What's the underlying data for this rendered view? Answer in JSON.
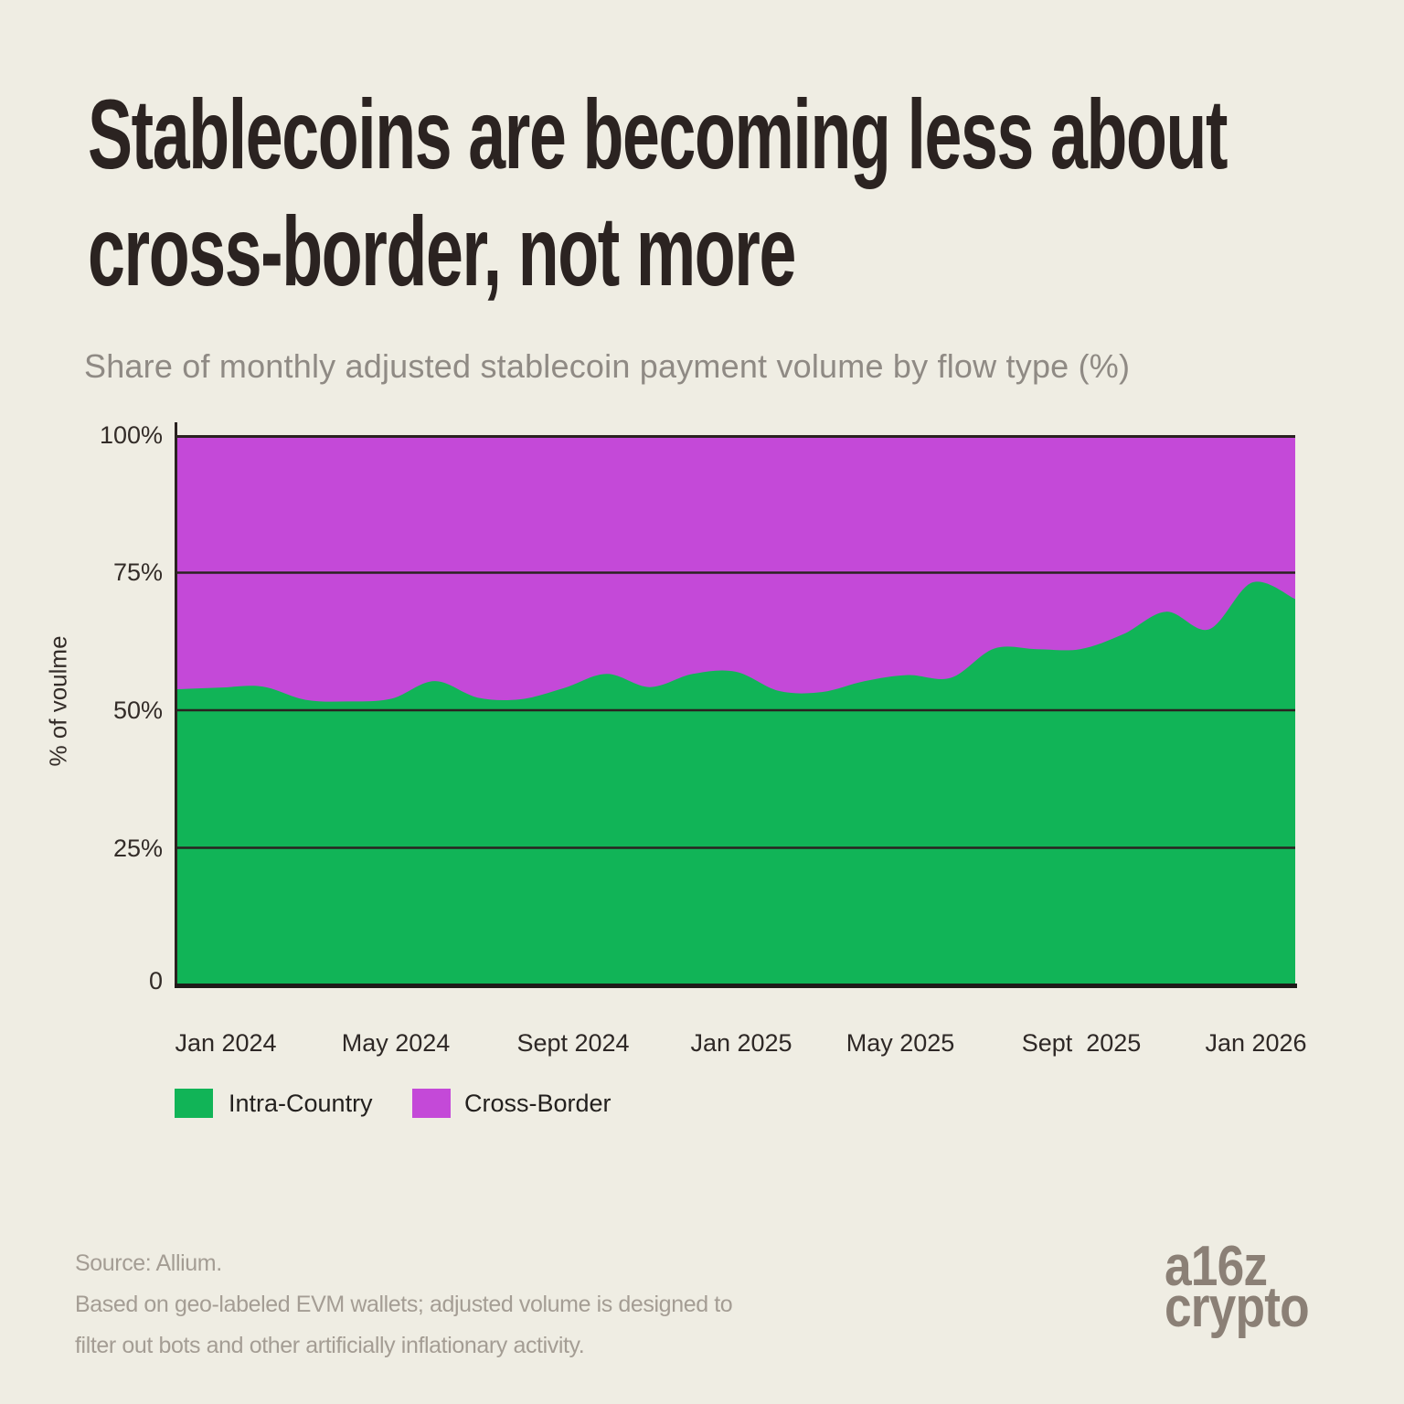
{
  "header": {
    "title_lines": [
      "Stablecoins are becoming less about",
      "cross-border, not more"
    ],
    "subtitle": "Share of monthly adjusted stablecoin payment volume by flow type (%)"
  },
  "chart_data": {
    "type": "area",
    "stacked": true,
    "normalized_to_100": true,
    "title": "Stablecoins are becoming less about cross-border, not more",
    "subtitle": "Share of monthly adjusted stablecoin payment volume by flow type (%)",
    "xlabel": "",
    "ylabel": "% of voulme",
    "ylim": [
      0,
      100
    ],
    "yticks": [
      "100%",
      "75%",
      "50%",
      "25%",
      "0"
    ],
    "ytick_values": [
      100,
      75,
      50,
      25,
      0
    ],
    "xticks": [
      "Jan 2024",
      "May 2024",
      "Sept 2024",
      "Jan 2025",
      "May 2025",
      "Sept  2025",
      "Jan 2026"
    ],
    "grid": "horizontal lines at 25, 50, 75",
    "legend_position": "bottom-left",
    "x": [
      "Dec 2023",
      "Jan 2024",
      "Feb 2024",
      "Mar 2024",
      "Apr 2024",
      "May 2024",
      "Jun 2024",
      "Jul 2024",
      "Aug 2024",
      "Sep 2024",
      "Oct 2024",
      "Nov 2024",
      "Dec 2024",
      "Jan 2025",
      "Feb 2025",
      "Mar 2025",
      "Apr 2025",
      "May 2025",
      "Jun 2025",
      "Jul 2025",
      "Aug 2025",
      "Sep 2025",
      "Oct 2025",
      "Nov 2025",
      "Dec 2025",
      "Jan 2026",
      "Feb 2026"
    ],
    "series": [
      {
        "name": "Intra-Country",
        "color": "#11B457",
        "values": [
          53.8,
          54.1,
          54.3,
          51.9,
          51.6,
          52.1,
          55.3,
          52.3,
          52.0,
          54.0,
          56.6,
          54.2,
          56.6,
          57.0,
          53.5,
          53.3,
          55.3,
          56.4,
          55.9,
          61.2,
          61.1,
          61.1,
          63.8,
          67.9,
          64.7,
          73.2,
          70.2
        ]
      },
      {
        "name": "Cross-Border",
        "color": "#C449D8",
        "values": [
          46.2,
          45.9,
          45.7,
          48.1,
          48.4,
          47.9,
          44.7,
          47.7,
          48.0,
          46.0,
          43.4,
          45.8,
          43.4,
          43.0,
          46.5,
          46.7,
          44.7,
          43.6,
          44.1,
          38.8,
          38.9,
          38.9,
          36.2,
          32.1,
          35.3,
          26.8,
          29.8
        ]
      }
    ]
  },
  "axis": {
    "ytick_labels": [
      "100%",
      "75%",
      "50%",
      "25%",
      "0"
    ],
    "xtick_labels": [
      "Jan 2024",
      "May 2024",
      "Sept 2024",
      "Jan 2025",
      "May 2025",
      "Sept  2025",
      "Jan 2026"
    ]
  },
  "footer": {
    "source_lines": [
      "Source: Allium.",
      "Based on geo-labeled EVM wallets; adjusted volume is designed to",
      "filter out bots and other artificially inflationary activity."
    ],
    "logo_lines": [
      "a16z",
      "crypto"
    ]
  },
  "colors": {
    "background": "#EFEDE3",
    "grid": "#2A2220",
    "axis": "#2A2220",
    "intra_country": "#11B457",
    "cross_border": "#C449D8",
    "title_text": "#2B2321",
    "subtitle_text": "#8F8A84",
    "tick_text": "#332C28",
    "source_text": "#A49D94",
    "logo_text": "#8B8076"
  }
}
